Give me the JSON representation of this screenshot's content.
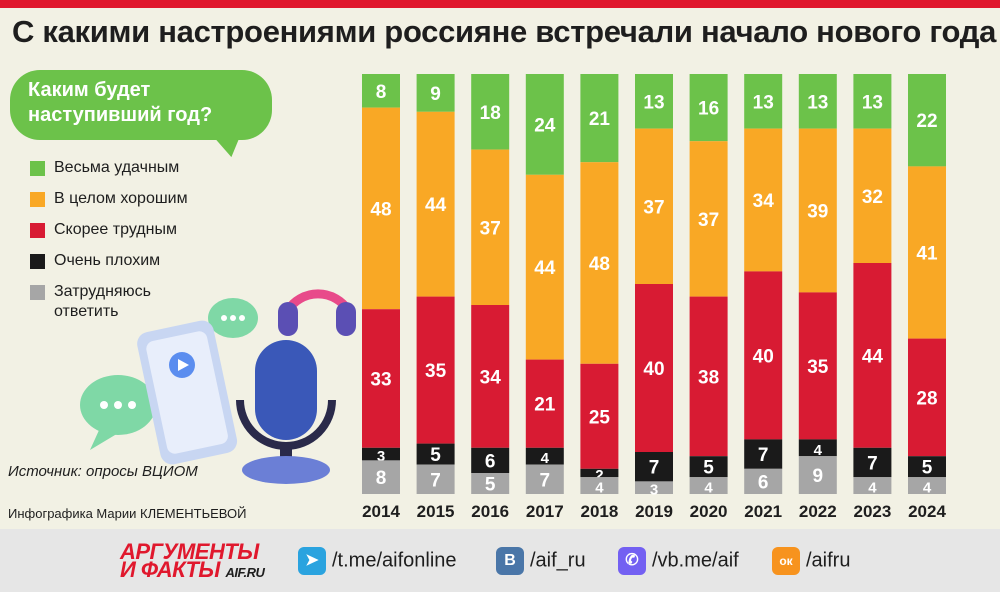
{
  "title": "С какими настроениями россияне встречали начало нового года",
  "question": "Каким будет наступивший год?",
  "legend": [
    {
      "label": "Весьма удачным",
      "color": "#6cc24a"
    },
    {
      "label": "В целом хорошим",
      "color": "#f9a825"
    },
    {
      "label": "Скорее трудным",
      "color": "#d81b33"
    },
    {
      "label": "Очень плохим",
      "color": "#1a1a1a"
    },
    {
      "label": "Затрудняюсь ответить",
      "color": "#a6a6a6"
    }
  ],
  "source": "Источник: опросы ВЦИОМ",
  "credit": "Инфографика Марии КЛЕМЕНТЬЕВОЙ",
  "chart_data": {
    "type": "bar",
    "stacked": true,
    "categories": [
      "2014",
      "2015",
      "2016",
      "2017",
      "2018",
      "2019",
      "2020",
      "2021",
      "2022",
      "2023",
      "2024"
    ],
    "series": [
      {
        "name": "Весьма удачным",
        "color": "#6cc24a",
        "values": [
          8,
          9,
          18,
          24,
          21,
          13,
          16,
          13,
          13,
          13,
          22
        ]
      },
      {
        "name": "В целом хорошим",
        "color": "#f9a825",
        "values": [
          48,
          44,
          37,
          44,
          48,
          37,
          37,
          34,
          39,
          32,
          41
        ]
      },
      {
        "name": "Скорее трудным",
        "color": "#d81b33",
        "values": [
          33,
          35,
          34,
          21,
          25,
          40,
          38,
          40,
          35,
          44,
          28
        ]
      },
      {
        "name": "Очень плохим",
        "color": "#1a1a1a",
        "values": [
          3,
          5,
          6,
          4,
          2,
          7,
          5,
          7,
          4,
          7,
          5
        ]
      },
      {
        "name": "Затрудняюсь ответить",
        "color": "#a6a6a6",
        "values": [
          8,
          7,
          5,
          7,
          4,
          3,
          4,
          6,
          9,
          4,
          4
        ]
      }
    ]
  },
  "footer": {
    "logo_line1": "АРГУМЕНТЫ",
    "logo_line2": "И ФАКТЫ",
    "logo_site": "AIF.RU",
    "links": [
      {
        "icon": "telegram-icon",
        "glyph": "➤",
        "text": "/t.me/aifonline",
        "color": "#2aa3df"
      },
      {
        "icon": "vk-icon",
        "glyph": "B",
        "text": "/aif_ru",
        "color": "#4a76a8"
      },
      {
        "icon": "viber-icon",
        "glyph": "✆",
        "text": "/vb.me/aif",
        "color": "#7360f2"
      },
      {
        "icon": "odnoklassniki-icon",
        "glyph": "ок",
        "text": "/aifru",
        "color": "#f7931e"
      }
    ]
  }
}
